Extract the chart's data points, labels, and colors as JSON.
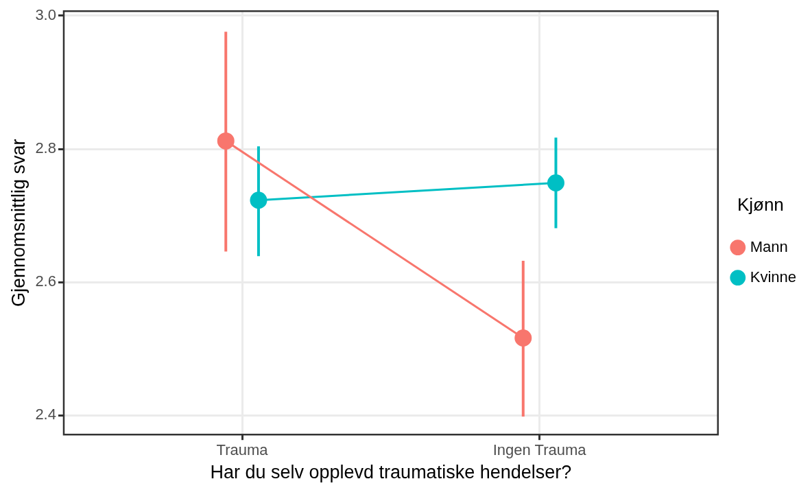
{
  "chart_data": {
    "type": "line",
    "xlabel": "Har du selv opplevd traumatiske hendelser?",
    "ylabel": "Gjennomsnittlig svar",
    "legend_title": "Kjønn",
    "categories": [
      "Trauma",
      "Ingen Trauma"
    ],
    "series": [
      {
        "name": "Mann",
        "color": "#f8766d",
        "values": [
          2.812,
          2.516
        ],
        "errors": [
          [
            2.646,
            2.976
          ],
          [
            2.398,
            2.632
          ]
        ]
      },
      {
        "name": "Kvinne",
        "color": "#00bfc4",
        "values": [
          2.723,
          2.749
        ],
        "errors": [
          [
            2.639,
            2.804
          ],
          [
            2.681,
            2.817
          ]
        ]
      }
    ],
    "ylim": [
      2.371,
      3.007
    ],
    "yticks": [
      2.4,
      2.6,
      2.8,
      {
        "value": 3,
        "label": "3.0"
      }
    ],
    "grid": true,
    "legend": "right",
    "marker": "circle",
    "line_style": "solid"
  }
}
